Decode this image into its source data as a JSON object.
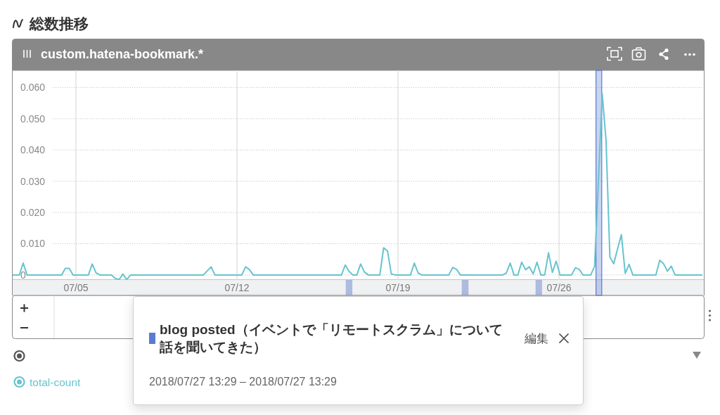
{
  "chart_data": {
    "type": "line",
    "title": "総数推移",
    "subtitle": "custom.hatena-bookmark.*",
    "x": [
      "2018-07-02T06:00",
      "2018-07-02T09:00",
      "2018-07-02T13:00",
      "2018-07-02T17:00",
      "2018-07-02T21:00",
      "2018-07-04T09:00",
      "2018-07-04T13:00",
      "2018-07-04T17:00",
      "2018-07-04T21:00",
      "2018-07-05T13:00",
      "2018-07-05T17:00",
      "2018-07-05T21:00",
      "2018-07-06T01:00",
      "2018-07-06T13:00",
      "2018-07-06T17:00",
      "2018-07-06T21:00",
      "2018-07-07T01:00",
      "2018-07-07T05:00",
      "2018-07-07T09:00",
      "2018-07-10T13:00",
      "2018-07-10T21:00",
      "2018-07-11T01:00",
      "2018-07-12T05:00",
      "2018-07-12T09:00",
      "2018-07-12T13:00",
      "2018-07-12T17:00",
      "2018-07-16T13:00",
      "2018-07-16T17:00",
      "2018-07-16T21:00",
      "2018-07-17T01:00",
      "2018-07-17T05:00",
      "2018-07-17T09:00",
      "2018-07-17T13:00",
      "2018-07-17T17:00",
      "2018-07-18T05:00",
      "2018-07-18T09:00",
      "2018-07-18T13:00",
      "2018-07-18T17:00",
      "2018-07-18T21:00",
      "2018-07-19T13:00",
      "2018-07-19T17:00",
      "2018-07-19T21:00",
      "2018-07-20T01:00",
      "2018-07-21T05:00",
      "2018-07-21T09:00",
      "2018-07-21T13:00",
      "2018-07-21T17:00",
      "2018-07-23T13:00",
      "2018-07-23T17:00",
      "2018-07-23T21:00",
      "2018-07-24T01:00",
      "2018-07-24T05:00",
      "2018-07-24T09:00",
      "2018-07-24T13:00",
      "2018-07-24T17:00",
      "2018-07-24T21:00",
      "2018-07-25T01:00",
      "2018-07-25T05:00",
      "2018-07-25T09:00",
      "2018-07-25T13:00",
      "2018-07-25T17:00",
      "2018-07-25T21:00",
      "2018-07-26T01:00",
      "2018-07-26T13:00",
      "2018-07-26T17:00",
      "2018-07-26T21:00",
      "2018-07-27T01:00",
      "2018-07-27T09:00",
      "2018-07-27T13:00",
      "2018-07-27T17:00",
      "2018-07-27T21:00",
      "2018-07-28T01:00",
      "2018-07-28T05:00",
      "2018-07-28T09:00",
      "2018-07-28T13:00",
      "2018-07-28T17:00",
      "2018-07-28T21:00",
      "2018-07-29T01:00",
      "2018-07-29T05:00",
      "2018-07-30T05:00",
      "2018-07-30T09:00",
      "2018-07-30T13:00",
      "2018-07-30T17:00",
      "2018-07-30T21:00",
      "2018-07-31T01:00",
      "2018-08-01T05:00"
    ],
    "series": [
      {
        "name": "total-count",
        "color": "#67c4cf",
        "values": [
          0,
          0,
          0,
          0.0038,
          0,
          0,
          0.0021,
          0.0021,
          0,
          0,
          0.0035,
          0.0007,
          0,
          0,
          -0.0011,
          -0.0015,
          0.0003,
          -0.0015,
          0,
          0,
          0.0026,
          0,
          0,
          0.0026,
          0.0017,
          0,
          0,
          0.0032,
          0.0011,
          0,
          0,
          0.0035,
          0.0009,
          0,
          0,
          0.0087,
          0.0077,
          0.0003,
          0,
          0,
          0.0038,
          0.0006,
          0,
          0,
          0.0024,
          0.0018,
          0,
          0,
          0.0006,
          0.0038,
          0,
          0,
          0.0041,
          0.0017,
          0.0026,
          0.0003,
          0.0041,
          0,
          0,
          0.0071,
          0.0008,
          0.0044,
          0,
          0,
          0.0023,
          0.0018,
          0,
          0,
          0.0027,
          0.03,
          0.058,
          0.043,
          0.0057,
          0.0036,
          0.0083,
          0.0129,
          0.0005,
          0.0034,
          0,
          0,
          0.0047,
          0.0036,
          0.0012,
          0.0028,
          0,
          0
        ]
      }
    ],
    "xlim": [
      "2018-07-02T06:00",
      "2018-08-01T07:00"
    ],
    "xticks": [
      {
        "value": "2018-07-05",
        "label": "07/05"
      },
      {
        "value": "2018-07-12",
        "label": "07/12"
      },
      {
        "value": "2018-07-19",
        "label": "07/19"
      },
      {
        "value": "2018-07-26",
        "label": "07/26"
      }
    ],
    "ylim": [
      -0.0016,
      0.0655
    ],
    "yticks": [
      0,
      {
        "value": 0.01,
        "label": "0.010"
      },
      {
        "value": 0.02,
        "label": "0.020"
      },
      {
        "value": 0.03,
        "label": "0.030"
      },
      {
        "value": 0.04,
        "label": "0.040"
      },
      {
        "value": 0.05,
        "label": "0.050"
      },
      {
        "value": 0.06,
        "label": "0.060"
      }
    ],
    "grid": true,
    "legend": "bottom left",
    "bands": [
      {
        "axis": "x",
        "from": "2018-07-27T14:30",
        "to": "2018-07-27T20:30",
        "label": "blog posted（イベントで「リモートスクラム」について話を聞いてきた）",
        "color": "#5a7bd0"
      }
    ],
    "annotations": [
      "2018/07/27 13:29 – 2018/07/27 13:29",
      "編集"
    ]
  }
}
